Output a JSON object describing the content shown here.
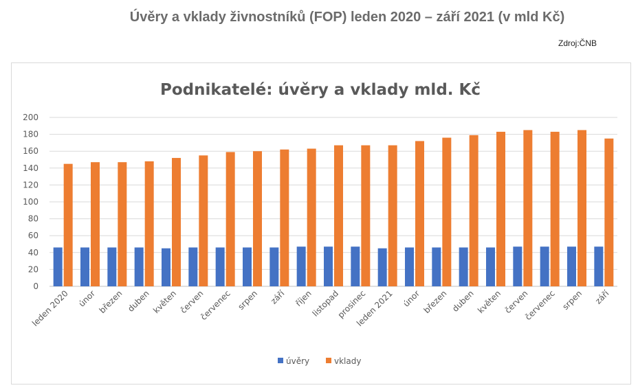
{
  "header": {
    "title": "Úvěry a vklady živnostníků (FOP) leden 2020 – září 2021 (v mld Kč)",
    "source": "Zdroj:ČNB"
  },
  "chart_data": {
    "type": "bar",
    "title": "Podnikatelé: úvěry a vklady mld. Kč",
    "xlabel": "",
    "ylabel": "",
    "ylim": [
      0,
      200
    ],
    "yticks": [
      0,
      20,
      40,
      60,
      80,
      100,
      120,
      140,
      160,
      180,
      200
    ],
    "grid": true,
    "legend_position": "bottom",
    "categories": [
      "leden 2020",
      "únor",
      "březen",
      "duben",
      "květen",
      "červen",
      "červenec",
      "srpen",
      "září",
      "říjen",
      "listopad",
      "prosinec",
      "leden 2021",
      "únor",
      "březen",
      "duben",
      "květen",
      "červen",
      "červenec",
      "srpen",
      "září"
    ],
    "series": [
      {
        "name": "úvěry",
        "color": "#4472c4",
        "values": [
          46,
          46,
          46,
          46,
          45,
          46,
          46,
          46,
          46,
          47,
          47,
          47,
          45,
          46,
          46,
          46,
          46,
          47,
          47,
          47,
          47
        ]
      },
      {
        "name": "vklady",
        "color": "#ed7d31",
        "values": [
          145,
          147,
          147,
          148,
          152,
          155,
          159,
          160,
          162,
          163,
          167,
          167,
          167,
          172,
          176,
          179,
          183,
          185,
          183,
          185,
          175
        ]
      }
    ]
  }
}
